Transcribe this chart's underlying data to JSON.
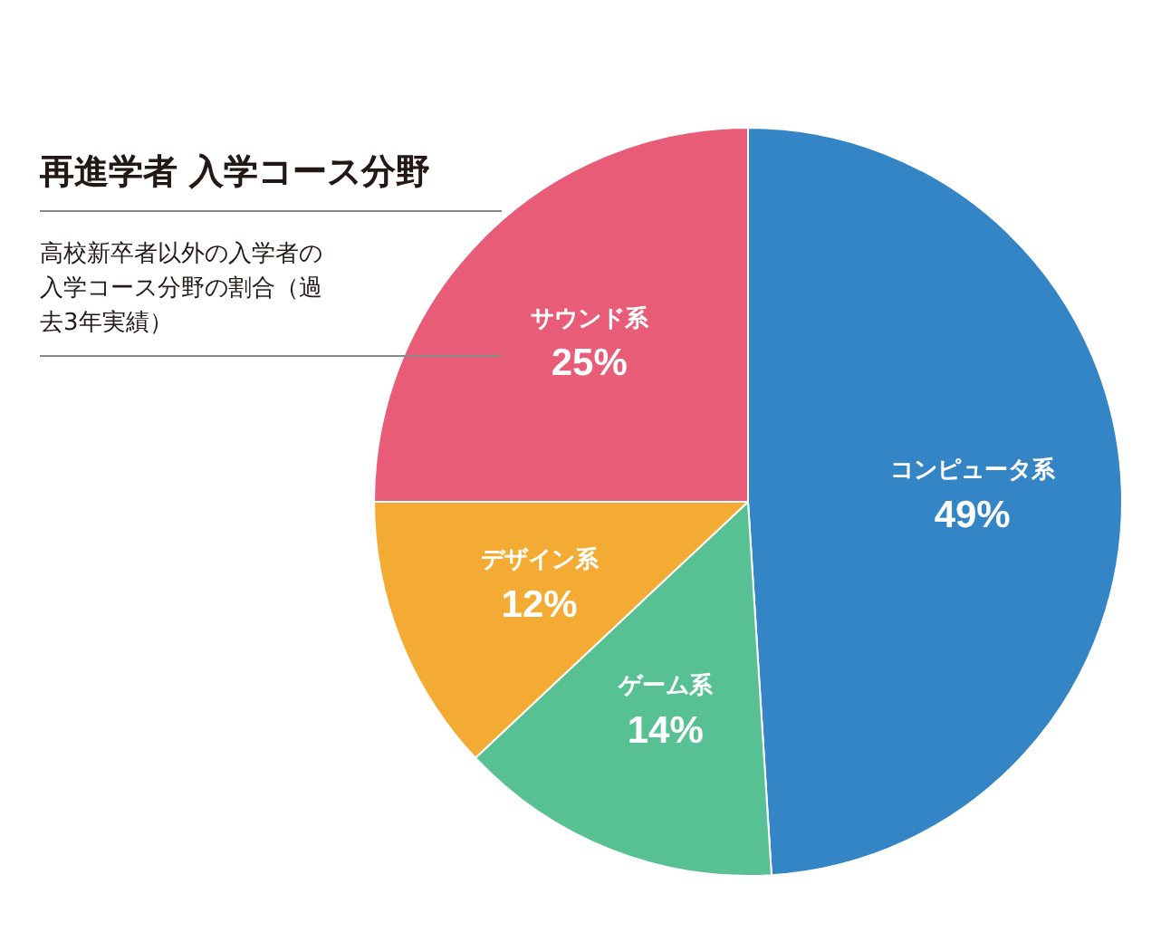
{
  "chart_data": {
    "type": "pie",
    "title": "再進学者 入学コース分野",
    "subtitle": "高校新卒者以外の入学者の入学コース分野の割合（過去3年実績）",
    "categories": [
      "コンピュータ系",
      "ゲーム系",
      "デザイン系",
      "サウンド系"
    ],
    "values": [
      49,
      14,
      12,
      25
    ],
    "value_labels": [
      "49%",
      "14%",
      "12%",
      "25%"
    ],
    "colors": [
      "#3485c6",
      "#58c193",
      "#f4ab33",
      "#e95c78"
    ],
    "legend": false
  }
}
